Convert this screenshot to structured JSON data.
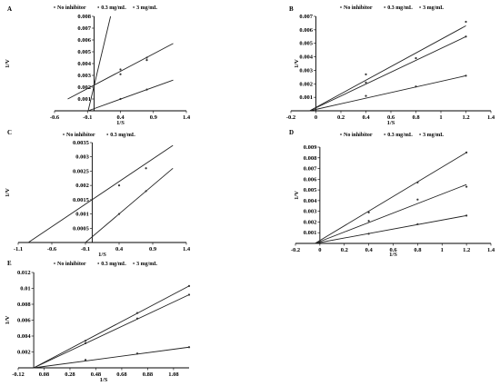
{
  "chart_data": [
    {
      "type": "scatter",
      "panel_label": "A",
      "xlabel": "1/S",
      "ylabel": "1/V",
      "xlim": [
        -0.6,
        1.4
      ],
      "ylim": [
        0,
        0.008
      ],
      "x_ticks": [
        -0.6,
        -0.1,
        0.4,
        0.9,
        1.4
      ],
      "x_tick_labels": [
        "-0.6",
        "-0.1",
        "0.4",
        "0.9",
        "1.4"
      ],
      "y_ticks": [
        0.001,
        0.002,
        0.003,
        0.004,
        0.005,
        0.006,
        0.007,
        0.008
      ],
      "y_tick_labels": [
        "0.001",
        "0.002",
        "0.003",
        "0.004",
        "0.005",
        "0.006",
        "0.007",
        "0.008"
      ],
      "legend": [
        "No inhibitor",
        "0.3 mg/mL",
        "3 mg/mL"
      ],
      "series": [
        {
          "name": "No inhibitor",
          "points": [
            [
              0.4,
              0.001
            ],
            [
              0.8,
              0.0018
            ]
          ],
          "line": [
            [
              -0.09,
              0
            ],
            [
              1.2,
              0.0026
            ]
          ]
        },
        {
          "name": "0.3 mg/mL",
          "points": [
            [
              0.4,
              0.0031
            ],
            [
              0.8,
              0.0045
            ]
          ],
          "line": [
            [
              -0.4,
              0.001
            ],
            [
              1.2,
              0.0057
            ]
          ]
        },
        {
          "name": "3 mg/mL",
          "points": [
            [
              0.4,
              0.0035
            ],
            [
              0.8,
              0.0043
            ]
          ],
          "line": [
            [
              -0.09,
              0
            ],
            [
              0.25,
              0.008
            ]
          ]
        }
      ]
    },
    {
      "type": "scatter",
      "panel_label": "B",
      "xlabel": "1/S",
      "ylabel": "1/V",
      "xlim": [
        -0.2,
        1.4
      ],
      "ylim": [
        0,
        0.007
      ],
      "x_ticks": [
        -0.2,
        0,
        0.2,
        0.4,
        0.6,
        0.8,
        1,
        1.2,
        1.4
      ],
      "x_tick_labels": [
        "-0.2",
        "0",
        "0.2",
        "0.4",
        "0.6",
        "0.8",
        "1",
        "1.2",
        "1.4"
      ],
      "y_ticks": [
        0.001,
        0.002,
        0.003,
        0.004,
        0.005,
        0.006,
        0.007
      ],
      "y_tick_labels": [
        "0.001",
        "0.002",
        "0.003",
        "0.004",
        "0.005",
        "0.006",
        "0.007"
      ],
      "legend": [
        "No inhibitor",
        "0.3 mg/mL",
        "3 mg/mL"
      ],
      "series": [
        {
          "name": "No inhibitor",
          "points": [
            [
              0.4,
              0.0011
            ],
            [
              0.8,
              0.0018
            ],
            [
              1.2,
              0.0026
            ]
          ],
          "line": [
            [
              -0.05,
              0
            ],
            [
              1.2,
              0.0026
            ]
          ]
        },
        {
          "name": "0.3 mg/mL",
          "points": [
            [
              0.4,
              0.0021
            ],
            [
              0.8,
              0.0039
            ],
            [
              1.2,
              0.0055
            ]
          ],
          "line": [
            [
              -0.05,
              0
            ],
            [
              1.2,
              0.0055
            ]
          ]
        },
        {
          "name": "3 mg/mL",
          "points": [
            [
              0.4,
              0.0027
            ],
            [
              0.8,
              0.0039
            ],
            [
              1.2,
              0.0066
            ]
          ],
          "line": [
            [
              -0.05,
              0
            ],
            [
              1.2,
              0.0063
            ]
          ]
        }
      ]
    },
    {
      "type": "scatter",
      "panel_label": "C",
      "xlabel": "1/S",
      "ylabel": "1/V",
      "xlim": [
        -1.1,
        1.4
      ],
      "ylim": [
        0,
        0.0035
      ],
      "x_ticks": [
        -1.1,
        -0.6,
        -0.1,
        0.4,
        0.9,
        1.4
      ],
      "x_tick_labels": [
        "-1.1",
        "-0.6",
        "-0.1",
        "0.4",
        "0.9",
        "1.4"
      ],
      "y_ticks": [
        0.0005,
        0.001,
        0.0015,
        0.002,
        0.0025,
        0.003,
        0.0035
      ],
      "y_tick_labels": [
        "0.0005",
        "0.001",
        "0.0015",
        "0.002",
        "0.0025",
        "0.003",
        "0.0035"
      ],
      "legend": [
        "No inhibitor",
        "0.3 mg/mL"
      ],
      "series": [
        {
          "name": "No inhibitor",
          "points": [
            [
              0.4,
              0.001
            ],
            [
              0.8,
              0.0018
            ]
          ],
          "line": [
            [
              -0.1,
              0
            ],
            [
              1.2,
              0.0026
            ]
          ]
        },
        {
          "name": "0.3 mg/mL",
          "points": [
            [
              0.4,
              0.002
            ],
            [
              0.8,
              0.0026
            ]
          ],
          "line": [
            [
              -0.95,
              0
            ],
            [
              1.2,
              0.0034
            ]
          ]
        }
      ]
    },
    {
      "type": "scatter",
      "panel_label": "D",
      "xlabel": "1/S",
      "ylabel": "1/V",
      "xlim": [
        -0.2,
        1.4
      ],
      "ylim": [
        0,
        0.009
      ],
      "x_ticks": [
        -0.2,
        0,
        0.2,
        0.4,
        0.6,
        0.8,
        1,
        1.2,
        1.4
      ],
      "x_tick_labels": [
        "-0.2",
        "0",
        "0.2",
        "0.4",
        "0.6",
        "0.8",
        "1",
        "1.2",
        "1.4"
      ],
      "y_ticks": [
        0.001,
        0.002,
        0.003,
        0.004,
        0.005,
        0.006,
        0.007,
        0.008,
        0.009
      ],
      "y_tick_labels": [
        "0.001",
        "0.002",
        "0.003",
        "0.004",
        "0.005",
        "0.006",
        "0.007",
        "0.008",
        "0.009"
      ],
      "legend": [
        "No inhibitor",
        "0.3 mg/mL",
        "3 mg/mL"
      ],
      "series": [
        {
          "name": "No inhibitor",
          "points": [
            [
              0.4,
              0.0009
            ],
            [
              0.8,
              0.0018
            ],
            [
              1.2,
              0.0026
            ]
          ],
          "line": [
            [
              -0.04,
              0
            ],
            [
              1.2,
              0.0026
            ]
          ]
        },
        {
          "name": "0.3 mg/mL",
          "points": [
            [
              0.4,
              0.0021
            ],
            [
              0.8,
              0.0041
            ],
            [
              1.2,
              0.0053
            ]
          ],
          "line": [
            [
              -0.04,
              0
            ],
            [
              1.2,
              0.0055
            ]
          ]
        },
        {
          "name": "3 mg/mL",
          "points": [
            [
              0.4,
              0.0029
            ],
            [
              0.8,
              0.0057
            ],
            [
              1.2,
              0.0085
            ]
          ],
          "line": [
            [
              -0.04,
              0
            ],
            [
              1.2,
              0.0085
            ]
          ]
        }
      ]
    },
    {
      "type": "scatter",
      "panel_label": "E",
      "xlabel": "1/S",
      "ylabel": "1/V",
      "xlim": [
        -0.12,
        1.2
      ],
      "ylim": [
        0,
        0.012
      ],
      "x_ticks": [
        -0.12,
        0.08,
        0.28,
        0.48,
        0.68,
        0.88,
        1.08
      ],
      "x_tick_labels": [
        "-0.12",
        "0.08",
        "0.28",
        "0.48",
        "0.68",
        "0.88",
        "1.08"
      ],
      "y_ticks": [
        0.002,
        0.004,
        0.006,
        0.008,
        0.01,
        0.012
      ],
      "y_tick_labels": [
        "0.002",
        "0.004",
        "0.006",
        "0.008",
        "0.01",
        "0.012"
      ],
      "legend": [
        "No inhibitor",
        "0.3 mg/mL",
        "3 mg/mL"
      ],
      "series": [
        {
          "name": "No inhibitor",
          "points": [
            [
              0.4,
              0.001
            ],
            [
              0.8,
              0.0018
            ],
            [
              1.2,
              0.0026
            ]
          ],
          "line": [
            [
              0,
              0
            ],
            [
              1.2,
              0.0026
            ]
          ]
        },
        {
          "name": "0.3 mg/mL",
          "points": [
            [
              0.4,
              0.0031
            ],
            [
              0.8,
              0.0062
            ],
            [
              1.2,
              0.0092
            ]
          ],
          "line": [
            [
              0,
              0
            ],
            [
              1.2,
              0.0092
            ]
          ]
        },
        {
          "name": "3 mg/mL",
          "points": [
            [
              0.4,
              0.0034
            ],
            [
              0.8,
              0.0069
            ],
            [
              1.2,
              0.0103
            ]
          ],
          "line": [
            [
              0,
              0
            ],
            [
              1.2,
              0.0103
            ]
          ]
        }
      ]
    }
  ]
}
